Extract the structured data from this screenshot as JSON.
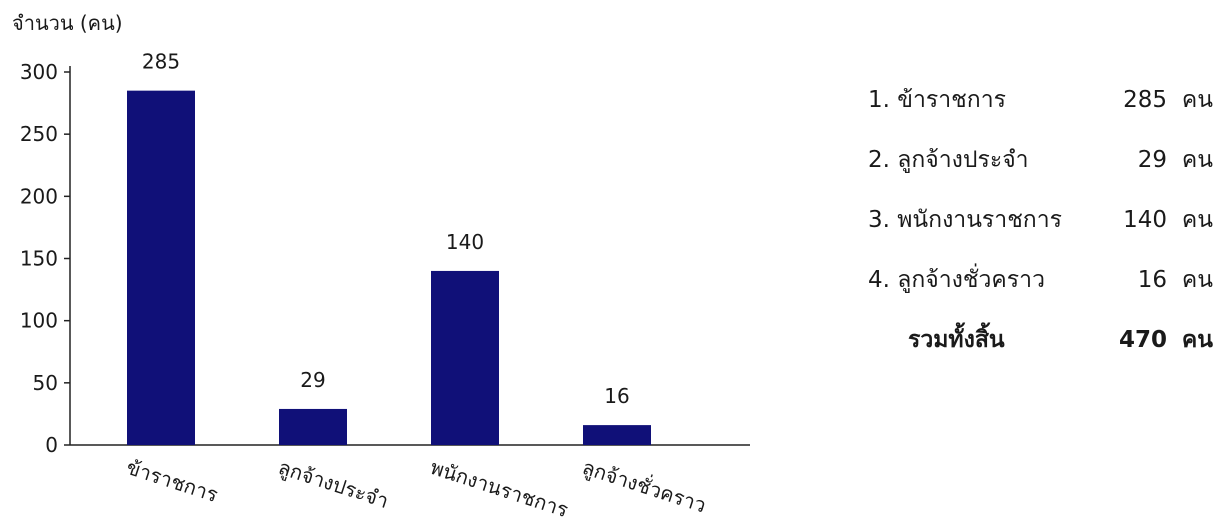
{
  "chart_data": {
    "type": "bar",
    "ylabel": "จำนวน (คน)",
    "categories": [
      "ข้าราชการ",
      "ลูกจ้างประจำ",
      "พนักงานราชการ",
      "ลูกจ้างชั่วคราว"
    ],
    "values": [
      285,
      29,
      140,
      16
    ],
    "ylim": [
      0,
      300
    ],
    "yticks": [
      0,
      50,
      100,
      150,
      200,
      250,
      300
    ],
    "data_labels": [
      "285",
      "29",
      "140",
      "16"
    ],
    "bar_color": "#101078",
    "grid": false
  },
  "summary": {
    "items": [
      {
        "label": "1. ข้าราชการ",
        "value": "285",
        "unit": "คน"
      },
      {
        "label": "2. ลูกจ้างประจำ",
        "value": "29",
        "unit": "คน"
      },
      {
        "label": "3. พนักงานราชการ",
        "value": "140",
        "unit": "คน"
      },
      {
        "label": "4. ลูกจ้างชั่วคราว",
        "value": "16",
        "unit": "คน"
      }
    ],
    "total": {
      "label": "รวมทั้งสิ้น",
      "value": "470",
      "unit": "คน"
    }
  }
}
